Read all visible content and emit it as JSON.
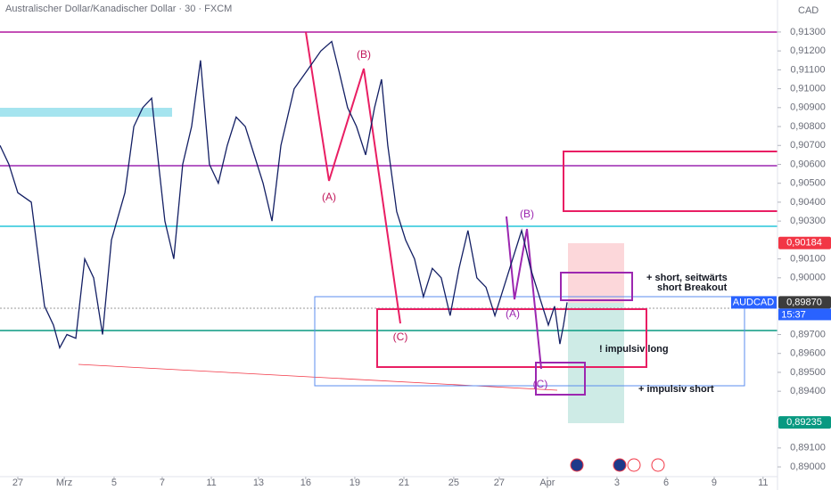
{
  "chart_data": {
    "type": "line",
    "title": "Australischer Dollar/Kanadischer Dollar · 30 · FXCM",
    "currency": "CAD",
    "symbol_label": "AUDCAD",
    "countdown": "15:37",
    "x": [
      0,
      0.37,
      0.74,
      1.3,
      1.85,
      2.22,
      2.48,
      2.78,
      3.15,
      3.52,
      3.89,
      4.26,
      4.63,
      5.19,
      5.56,
      5.93,
      6.3,
      6.59,
      6.85,
      7.22,
      7.59,
      7.96,
      8.33,
      8.7,
      9.07,
      9.44,
      9.81,
      10.19,
      10.56,
      10.93,
      11.3,
      11.67,
      12.22,
      12.78,
      13.33,
      13.78,
      14.07,
      14.44,
      14.81,
      15.19,
      15.56,
      15.85,
      16.11,
      16.48,
      16.85,
      17.22,
      17.59,
      17.96,
      18.33,
      18.7,
      19.07,
      19.44,
      19.81,
      20.19,
      20.56,
      20.93,
      21.3,
      21.67,
      22.04,
      22.41,
      22.78,
      23.04,
      23.26,
      23.41,
      23.56
    ],
    "series": [
      {
        "name": "AUDCAD",
        "color": "#131f64",
        "values": [
          0.907,
          0.906,
          0.9045,
          0.904,
          0.8985,
          0.8975,
          0.8963,
          0.897,
          0.8968,
          0.901,
          0.9,
          0.897,
          0.902,
          0.9045,
          0.908,
          0.909,
          0.9095,
          0.906,
          0.903,
          0.901,
          0.906,
          0.908,
          0.9115,
          0.906,
          0.905,
          0.907,
          0.9085,
          0.908,
          0.9065,
          0.905,
          0.903,
          0.907,
          0.91,
          0.911,
          0.912,
          0.9125,
          0.911,
          0.909,
          0.908,
          0.9065,
          0.909,
          0.9105,
          0.907,
          0.9035,
          0.902,
          0.901,
          0.899,
          0.9005,
          0.9,
          0.898,
          0.9005,
          0.9025,
          0.9,
          0.8995,
          0.898,
          0.8995,
          0.901,
          0.9025,
          0.9005,
          0.899,
          0.8975,
          0.8985,
          0.8965,
          0.8975,
          0.8987
        ]
      }
    ],
    "xlim": [
      0,
      32.3
    ],
    "ylim": [
      0.88972,
      0.91375
    ],
    "xticks": [
      {
        "value": 0.74,
        "label": "27"
      },
      {
        "value": 2.67,
        "label": "Mrz"
      },
      {
        "value": 4.74,
        "label": "5"
      },
      {
        "value": 6.74,
        "label": "7"
      },
      {
        "value": 8.78,
        "label": "11"
      },
      {
        "value": 10.74,
        "label": "13"
      },
      {
        "value": 12.7,
        "label": "16"
      },
      {
        "value": 14.74,
        "label": "19"
      },
      {
        "value": 16.78,
        "label": "21"
      },
      {
        "value": 18.85,
        "label": "25"
      },
      {
        "value": 20.74,
        "label": "27"
      },
      {
        "value": 22.74,
        "label": "Apr"
      },
      {
        "value": 25.63,
        "label": "3"
      },
      {
        "value": 27.67,
        "label": "6"
      },
      {
        "value": 29.67,
        "label": "9"
      },
      {
        "value": 31.7,
        "label": "11"
      }
    ],
    "yticks": [
      {
        "value": 0.913,
        "label": "0,91300"
      },
      {
        "value": 0.912,
        "label": "0,91200"
      },
      {
        "value": 0.911,
        "label": "0,91100"
      },
      {
        "value": 0.91,
        "label": "0,91000"
      },
      {
        "value": 0.909,
        "label": "0,90900"
      },
      {
        "value": 0.908,
        "label": "0,90800"
      },
      {
        "value": 0.907,
        "label": "0,90700"
      },
      {
        "value": 0.906,
        "label": "0,90600"
      },
      {
        "value": 0.905,
        "label": "0,90500"
      },
      {
        "value": 0.904,
        "label": "0,90400"
      },
      {
        "value": 0.903,
        "label": "0,90300"
      },
      {
        "value": 0.901,
        "label": "0,90100"
      },
      {
        "value": 0.9,
        "label": "0,90000"
      },
      {
        "value": 0.897,
        "label": "0,89700"
      },
      {
        "value": 0.896,
        "label": "0,89600"
      },
      {
        "value": 0.895,
        "label": "0,89500"
      },
      {
        "value": 0.894,
        "label": "0,89400"
      },
      {
        "value": 0.891,
        "label": "0,89100"
      },
      {
        "value": 0.89,
        "label": "0,89000"
      }
    ],
    "price_labels": [
      {
        "value": 0.90184,
        "label": "0,90184",
        "color": "#f23645"
      },
      {
        "value": 0.8987,
        "label": "0,89870",
        "color": "#3c3c3c"
      },
      {
        "value": 0.89235,
        "label": "0,89235",
        "color": "#089981"
      }
    ],
    "annotations": [
      "(A)",
      "(B)",
      "(C)",
      "(A)",
      "(B)",
      "(C)",
      "+ short, seitwärts",
      "short Breakout",
      "! impulsiv long",
      "+ impulsiv short"
    ]
  }
}
